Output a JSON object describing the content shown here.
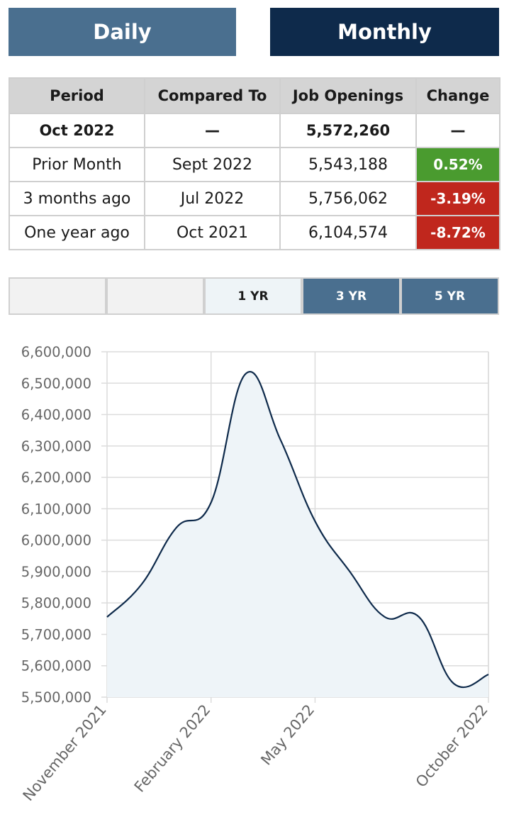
{
  "tabs": {
    "daily": "Daily",
    "monthly": "Monthly"
  },
  "table": {
    "headers": [
      "Period",
      "Compared To",
      "Job Openings",
      "Change"
    ],
    "rows": [
      {
        "period": "Oct 2022",
        "compared": "—",
        "value": "5,572,260",
        "change": "—",
        "change_color": ""
      },
      {
        "period": "Prior Month",
        "compared": "Sept 2022",
        "value": "5,543,188",
        "change": "0.52%",
        "change_color": "#4a9b2f"
      },
      {
        "period": "3 months ago",
        "compared": "Jul 2022",
        "value": "5,756,062",
        "change": "-3.19%",
        "change_color": "#c0271d"
      },
      {
        "period": "One year ago",
        "compared": "Oct 2021",
        "value": "6,104,574",
        "change": "-8.72%",
        "change_color": "#c0271d"
      }
    ]
  },
  "ranges": [
    "",
    "",
    "1 YR",
    "3 YR",
    "5 YR"
  ],
  "active_range": "1 YR",
  "chart_data": {
    "type": "area",
    "title": "",
    "xlabel": "",
    "ylabel": "",
    "ylim": [
      5500000,
      6600000
    ],
    "yticks": [
      5500000,
      5600000,
      5700000,
      5800000,
      5900000,
      6000000,
      6100000,
      6200000,
      6300000,
      6400000,
      6500000,
      6600000
    ],
    "ytick_labels": [
      "5,500,000",
      "5,600,000",
      "5,700,000",
      "5,800,000",
      "5,900,000",
      "6,000,000",
      "6,100,000",
      "6,200,000",
      "6,300,000",
      "6,400,000",
      "6,500,000",
      "6,600,000"
    ],
    "xtick_labels": [
      "November 2021",
      "February 2022",
      "May 2022",
      "October 2022"
    ],
    "xtick_index": [
      0,
      3,
      6,
      11
    ],
    "x": [
      "Nov 2021",
      "Dec 2021",
      "Jan 2022",
      "Feb 2022",
      "Mar 2022",
      "Apr 2022",
      "May 2022",
      "Jun 2022",
      "Jul 2022",
      "Aug 2022",
      "Sep 2022",
      "Oct 2022"
    ],
    "values": [
      5755000,
      5860000,
      6040000,
      6120000,
      6530000,
      6320000,
      6060000,
      5900000,
      5756062,
      5755000,
      5543188,
      5572260
    ],
    "line_color": "#0e2a4b",
    "fill_color": "#eef4f8",
    "grid": true
  }
}
